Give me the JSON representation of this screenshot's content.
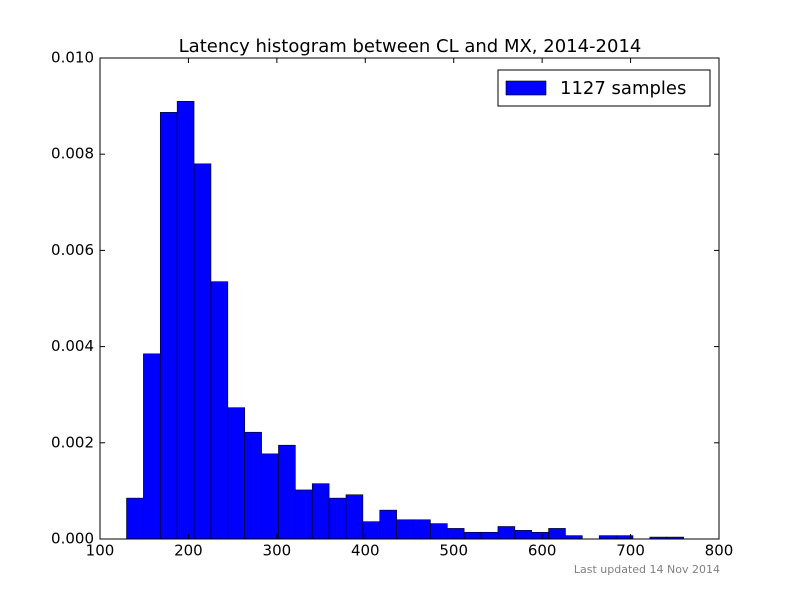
{
  "chart_data": {
    "type": "histogram",
    "title": "Latency histogram between CL and MX, 2014-2014",
    "footnote": "Last updated 14 Nov 2014",
    "bins": [
      130,
      149.09,
      168.18,
      187.27,
      206.36,
      225.45,
      244.55,
      263.64,
      282.73,
      301.82,
      320.91,
      340,
      359.09,
      378.18,
      397.27,
      416.36,
      435.45,
      454.55,
      473.64,
      492.73,
      511.82,
      530.91,
      550,
      569.09,
      588.18,
      607.27,
      626.36,
      645.45,
      664.55,
      683.64,
      702.73,
      721.82,
      740.91,
      760
    ],
    "series": [
      {
        "name": "1127 samples",
        "color": "#0000ff",
        "values": [
          0.00085,
          0.00385,
          0.00887,
          0.0091,
          0.0078,
          0.00535,
          0.00273,
          0.00222,
          0.00177,
          0.00195,
          0.00102,
          0.00115,
          0.00085,
          0.00092,
          0.00036,
          0.0006,
          0.0004,
          0.0004,
          0.00032,
          0.00022,
          0.00014,
          0.00014,
          0.00026,
          0.00018,
          0.00014,
          0.00022,
          7e-05,
          0,
          7e-05,
          7e-05,
          0,
          4e-05,
          4e-05
        ]
      }
    ],
    "xlim": [
      100,
      800
    ],
    "xticks": [
      100,
      200,
      300,
      400,
      500,
      600,
      700,
      800
    ],
    "ylim": [
      0,
      0.01
    ],
    "yticks": [
      {
        "value": 0,
        "label": "0.000"
      },
      {
        "value": 0.002,
        "label": "0.002"
      },
      {
        "value": 0.004,
        "label": "0.004"
      },
      {
        "value": 0.006,
        "label": "0.006"
      },
      {
        "value": 0.008,
        "label": "0.008"
      },
      {
        "value": 0.01,
        "label": "0.010"
      }
    ],
    "legend": "upper right"
  }
}
